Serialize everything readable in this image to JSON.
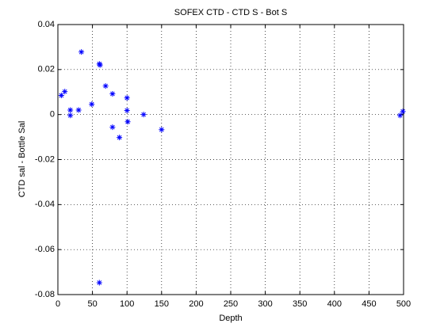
{
  "chart_data": {
    "type": "scatter",
    "title": "SOFEX CTD - CTD S - Bot S",
    "x_label": "Depth",
    "y_label": "CTD sal - Bottle Sal",
    "series": [
      {
        "color": "#0000ff",
        "marker": "asterisk",
        "x": [
          5,
          10,
          18,
          18,
          30,
          34,
          49,
          60,
          61,
          60,
          69,
          79,
          79,
          89,
          100,
          100,
          101,
          124,
          150,
          495,
          499
        ],
        "values": [
          0.0085,
          0.0102,
          0.002,
          -0.0004,
          0.002,
          0.0278,
          0.0046,
          0.0225,
          0.022,
          -0.0747,
          0.0127,
          0.0092,
          -0.0056,
          -0.0102,
          0.0074,
          0.0018,
          -0.0032,
          0.0,
          -0.0067,
          -0.0004,
          0.0014
        ]
      }
    ],
    "xlim": [
      0,
      500
    ],
    "xticks": [
      0,
      50,
      100,
      150,
      200,
      250,
      300,
      350,
      400,
      450,
      500
    ],
    "ylim": [
      -0.08,
      0.04
    ],
    "yticks": [
      -0.08,
      -0.06,
      -0.04,
      -0.02,
      0,
      0.02,
      0.04
    ],
    "grid": true
  }
}
